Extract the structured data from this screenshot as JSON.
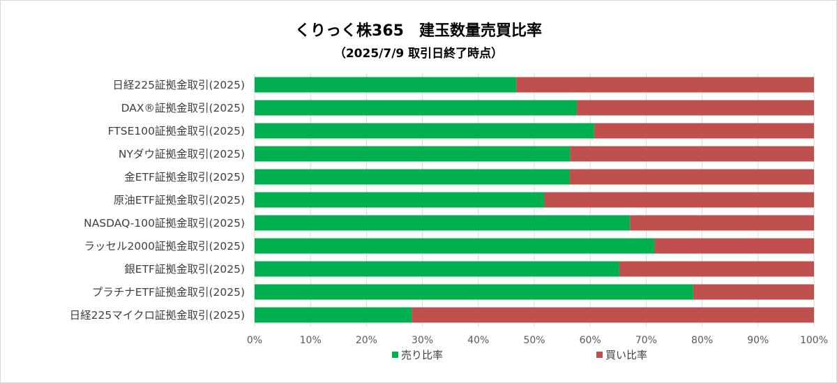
{
  "chart_data": {
    "type": "bar",
    "orientation": "horizontal",
    "stacked": true,
    "title": "くりっく株365　建玉数量売買比率",
    "subtitle": "（2025/7/9 取引日終了時点）",
    "categories": [
      "日経225証拠金取引(2025)",
      "DAX®証拠金取引(2025)",
      "FTSE100証拠金取引(2025)",
      "NYダウ証拠金取引(2025)",
      "金ETF証拠金取引(2025)",
      "原油ETF証拠金取引(2025)",
      "NASDAQ-100証拠金取引(2025)",
      "ラッセル2000証拠金取引(2025)",
      "銀ETF証拠金取引(2025)",
      "プラチナETF証拠金取引(2025)",
      "日経225マイクロ証拠金取引(2025)"
    ],
    "series": [
      {
        "name": "売り比率",
        "color": "#00b050",
        "values": [
          46.8,
          57.6,
          60.7,
          56.4,
          56.3,
          51.8,
          67.1,
          71.5,
          65.2,
          78.4,
          28.1
        ]
      },
      {
        "name": "買い比率",
        "color": "#c0504d",
        "values": [
          53.2,
          42.4,
          39.3,
          43.6,
          43.7,
          48.2,
          32.9,
          28.5,
          34.8,
          21.6,
          71.9
        ]
      }
    ],
    "xlim": [
      0,
      100
    ],
    "xticks": [
      "0%",
      "10%",
      "20%",
      "30%",
      "40%",
      "50%",
      "60%",
      "70%",
      "80%",
      "90%",
      "100%"
    ],
    "gridlines": true,
    "legend_position": "bottom"
  }
}
